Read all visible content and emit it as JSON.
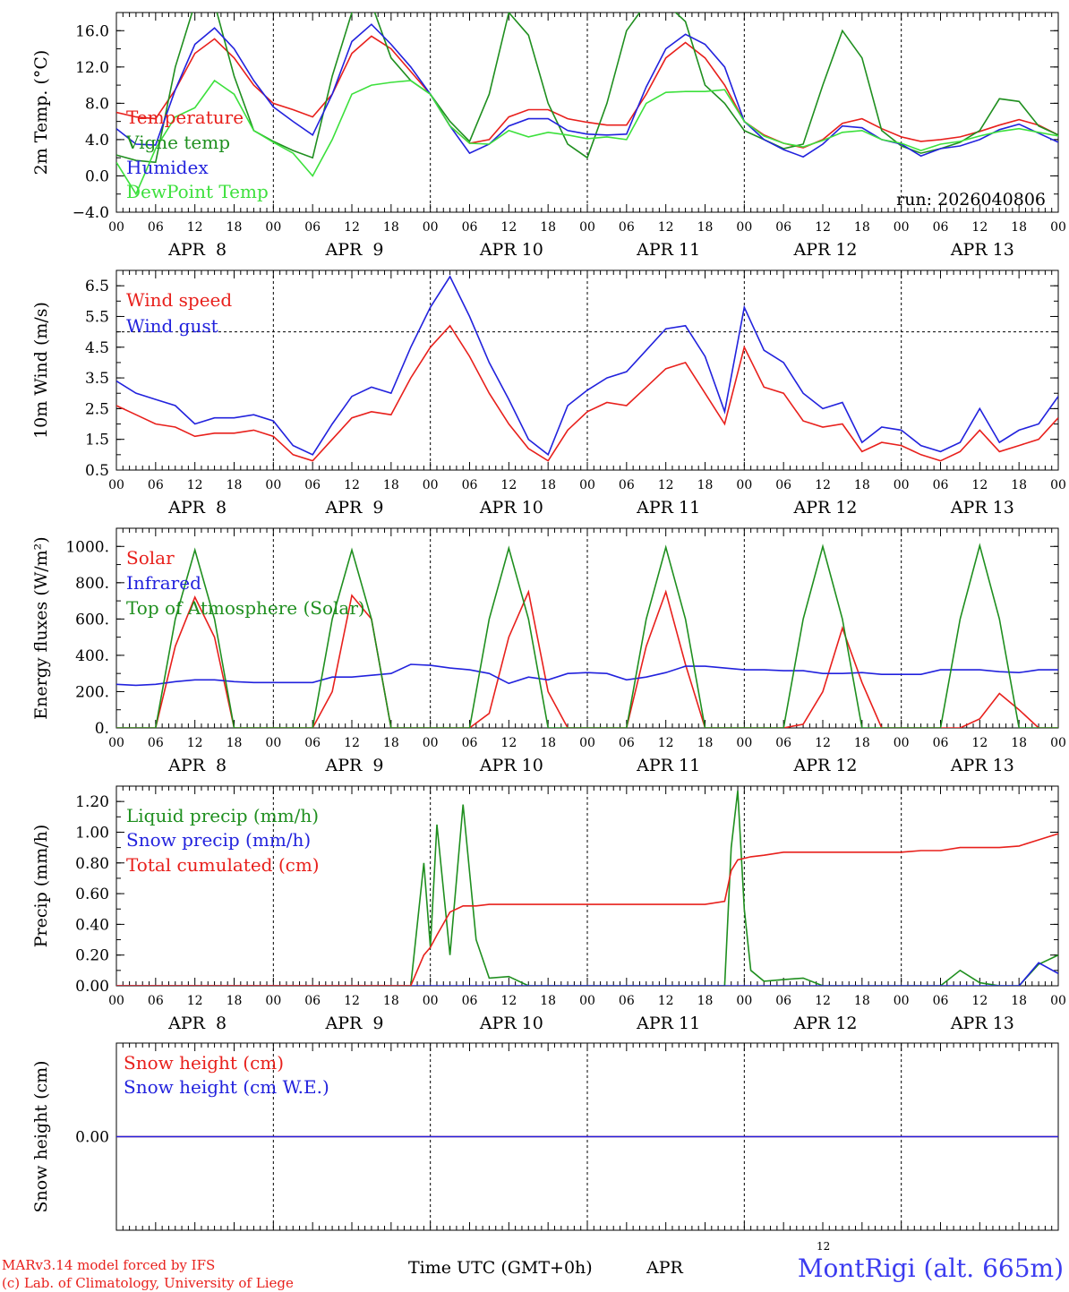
{
  "chart_data": [
    {
      "type": "line",
      "ylabel": "2m Temp. (°C)",
      "ylim": [
        -4,
        18
      ],
      "yticks": [
        -4.0,
        0.0,
        4.0,
        8.0,
        12.0,
        16.0
      ],
      "ytick_labels": [
        "−4.0",
        "0.0",
        "4.0",
        "8.0",
        "12.0",
        "16.0"
      ],
      "x_hours": [
        0,
        3,
        6,
        9,
        12,
        15,
        18,
        21,
        24,
        27,
        30,
        33,
        36,
        39,
        42,
        45,
        48,
        51,
        54,
        57,
        60,
        63,
        66,
        69,
        72,
        75,
        78,
        81,
        84,
        87,
        90,
        93,
        96,
        99,
        102,
        105,
        108,
        111,
        114,
        117,
        120,
        123,
        126,
        129,
        132,
        135,
        138,
        141,
        144
      ],
      "annotation": "run: 2026040806",
      "series": [
        {
          "name": "Temperature",
          "color": "#e8201c",
          "values": [
            7,
            6.5,
            6.3,
            9.5,
            13.5,
            15.1,
            13,
            10,
            8,
            7.3,
            6.5,
            9,
            13.5,
            15.4,
            14,
            11.5,
            9,
            5.5,
            3.6,
            4,
            6.5,
            7.3,
            7.3,
            6.3,
            5.9,
            5.6,
            5.6,
            9,
            13,
            14.7,
            13,
            10,
            6,
            4.5,
            3.6,
            3.1,
            4,
            5.8,
            6.3,
            5.2,
            4.3,
            3.8,
            4,
            4.3,
            4.9,
            5.6,
            6.2,
            5.6,
            4.5
          ]
        },
        {
          "name": "Vigne temp",
          "color": "#1f8f1f",
          "values": [
            2.3,
            1.7,
            1.5,
            12,
            19,
            19,
            11,
            5,
            3.8,
            2.8,
            2,
            11,
            18,
            19,
            13,
            10.5,
            9,
            6,
            3.8,
            9,
            18,
            15.5,
            8,
            3.5,
            2,
            8,
            16,
            19,
            19,
            17,
            10,
            8,
            5,
            4,
            3,
            3.5,
            10,
            16,
            13,
            5,
            3.3,
            2.5,
            3,
            3.7,
            5,
            8.5,
            8.2,
            5.5,
            4.5
          ]
        },
        {
          "name": "Humidex",
          "color": "#2222dd",
          "values": [
            5.2,
            3.5,
            3.4,
            9.5,
            14.5,
            16.3,
            14,
            10.5,
            7.6,
            6,
            4.5,
            9,
            14.8,
            16.7,
            14.5,
            12,
            9,
            5.5,
            2.5,
            3.5,
            5.5,
            6.3,
            6.3,
            5,
            4.6,
            4.5,
            4.6,
            9.8,
            14,
            15.6,
            14.5,
            12,
            6,
            4,
            2.9,
            2.1,
            3.5,
            5.5,
            5.3,
            4,
            3.5,
            2.2,
            3,
            3.3,
            4,
            5.1,
            5.7,
            4.7,
            3.7
          ]
        },
        {
          "name": "DewPoint Temp",
          "color": "#3ce03c",
          "values": [
            1.5,
            -2,
            3,
            6.5,
            7.5,
            10.5,
            9,
            5,
            3.7,
            2.5,
            0,
            4,
            9,
            10,
            10.3,
            10.5,
            9,
            5.5,
            3.6,
            3.5,
            5,
            4.3,
            4.8,
            4.5,
            4.1,
            4.3,
            4,
            8,
            9.2,
            9.3,
            9.3,
            9.5,
            6,
            4.4,
            3.6,
            3.2,
            3.9,
            4.8,
            5,
            4,
            3.6,
            2.8,
            3.5,
            3.8,
            4.4,
            4.9,
            5.2,
            4.8,
            4.4
          ]
        }
      ]
    },
    {
      "type": "line",
      "ylabel": "10m Wind (m/s)",
      "ylim": [
        0.5,
        7
      ],
      "yticks": [
        0.5,
        1.5,
        2.5,
        3.5,
        4.5,
        5.5,
        6.5
      ],
      "ytick_labels": [
        "0.5",
        "1.5",
        "2.5",
        "3.5",
        "4.5",
        "5.5",
        "6.5"
      ],
      "reference_line": 5,
      "x_hours": [
        0,
        3,
        6,
        9,
        12,
        15,
        18,
        21,
        24,
        27,
        30,
        33,
        36,
        39,
        42,
        45,
        48,
        51,
        54,
        57,
        60,
        63,
        66,
        69,
        72,
        75,
        78,
        81,
        84,
        87,
        90,
        93,
        96,
        99,
        102,
        105,
        108,
        111,
        114,
        117,
        120,
        123,
        126,
        129,
        132,
        135,
        138,
        141,
        144
      ],
      "series": [
        {
          "name": "Wind speed",
          "color": "#e8201c",
          "values": [
            2.6,
            2.3,
            2.0,
            1.9,
            1.6,
            1.7,
            1.7,
            1.8,
            1.6,
            1.0,
            0.8,
            1.5,
            2.2,
            2.4,
            2.3,
            3.5,
            4.5,
            5.2,
            4.2,
            3.0,
            2.0,
            1.2,
            0.8,
            1.8,
            2.4,
            2.7,
            2.6,
            3.2,
            3.8,
            4.0,
            3.0,
            2.0,
            4.5,
            3.2,
            3.0,
            2.1,
            1.9,
            2.0,
            1.1,
            1.4,
            1.3,
            1.0,
            0.8,
            1.1,
            1.8,
            1.1,
            1.3,
            1.5,
            2.2
          ]
        },
        {
          "name": "Wind gust",
          "color": "#2222dd",
          "values": [
            3.4,
            3.0,
            2.8,
            2.6,
            2.0,
            2.2,
            2.2,
            2.3,
            2.1,
            1.3,
            1.0,
            2.0,
            2.9,
            3.2,
            3.0,
            4.5,
            5.8,
            6.8,
            5.5,
            4.0,
            2.8,
            1.5,
            1.0,
            2.6,
            3.1,
            3.5,
            3.7,
            4.4,
            5.1,
            5.2,
            4.2,
            2.4,
            5.8,
            4.4,
            4.0,
            3.0,
            2.5,
            2.7,
            1.4,
            1.9,
            1.8,
            1.3,
            1.1,
            1.4,
            2.5,
            1.4,
            1.8,
            2.0,
            2.9
          ]
        }
      ]
    },
    {
      "type": "line",
      "ylabel": "Energy fluxes (W/m²)",
      "ylim": [
        0,
        1100
      ],
      "yticks": [
        0,
        200,
        400,
        600,
        800,
        1000
      ],
      "ytick_labels": [
        "0.",
        "200.",
        "400.",
        "600.",
        "800.",
        "1000."
      ],
      "x_hours": [
        0,
        3,
        6,
        9,
        12,
        15,
        18,
        21,
        24,
        27,
        30,
        33,
        36,
        39,
        42,
        45,
        48,
        51,
        54,
        57,
        60,
        63,
        66,
        69,
        72,
        75,
        78,
        81,
        84,
        87,
        90,
        93,
        96,
        99,
        102,
        105,
        108,
        111,
        114,
        117,
        120,
        123,
        126,
        129,
        132,
        135,
        138,
        141,
        144
      ],
      "series": [
        {
          "name": "Solar",
          "color": "#e8201c",
          "values": [
            0,
            0,
            0,
            450,
            720,
            500,
            0,
            0,
            0,
            0,
            0,
            200,
            730,
            600,
            0,
            0,
            0,
            0,
            0,
            80,
            500,
            750,
            200,
            0,
            0,
            0,
            0,
            450,
            750,
            350,
            0,
            0,
            0,
            0,
            0,
            20,
            200,
            550,
            250,
            0,
            0,
            0,
            0,
            0,
            50,
            190,
            100,
            0,
            0
          ]
        },
        {
          "name": "Infrared",
          "color": "#2222dd",
          "values": [
            240,
            235,
            240,
            255,
            265,
            265,
            255,
            250,
            250,
            250,
            250,
            280,
            280,
            290,
            300,
            350,
            345,
            330,
            320,
            300,
            245,
            280,
            265,
            300,
            305,
            300,
            265,
            280,
            305,
            340,
            340,
            330,
            320,
            320,
            315,
            315,
            300,
            300,
            305,
            295,
            295,
            295,
            320,
            320,
            320,
            310,
            305,
            320,
            320
          ]
        },
        {
          "name": "Top of Atmosphere (Solar)",
          "color": "#1f8f1f",
          "values": [
            0,
            0,
            0,
            600,
            980,
            600,
            0,
            0,
            0,
            0,
            0,
            600,
            980,
            600,
            0,
            0,
            0,
            0,
            0,
            600,
            990,
            600,
            0,
            0,
            0,
            0,
            0,
            600,
            995,
            600,
            0,
            0,
            0,
            0,
            0,
            600,
            1000,
            600,
            0,
            0,
            0,
            0,
            0,
            600,
            1005,
            600,
            0,
            0,
            0
          ]
        }
      ]
    },
    {
      "type": "line",
      "ylabel": "Precip (mm/h)",
      "ylim": [
        0,
        1.3
      ],
      "yticks": [
        0.0,
        0.2,
        0.4,
        0.6,
        0.8,
        1.0,
        1.2
      ],
      "ytick_labels": [
        "0.00",
        "0.20",
        "0.40",
        "0.60",
        "0.80",
        "1.00",
        "1.20"
      ],
      "x_hours": [
        0,
        3,
        6,
        9,
        12,
        15,
        18,
        21,
        24,
        27,
        30,
        33,
        36,
        39,
        42,
        45,
        47,
        48,
        49,
        51,
        53,
        55,
        57,
        60,
        63,
        66,
        69,
        72,
        75,
        78,
        81,
        84,
        87,
        90,
        93,
        94,
        95,
        96,
        97,
        99,
        102,
        105,
        108,
        111,
        114,
        117,
        120,
        123,
        126,
        129,
        132,
        135,
        138,
        141,
        144
      ],
      "series": [
        {
          "name": "Liquid precip (mm/h)",
          "color": "#1f8f1f",
          "values": [
            0,
            0,
            0,
            0,
            0,
            0,
            0,
            0,
            0,
            0,
            0,
            0,
            0,
            0,
            0,
            0,
            0.8,
            0.25,
            1.05,
            0.2,
            1.18,
            0.3,
            0.05,
            0.06,
            0,
            0,
            0,
            0,
            0,
            0,
            0,
            0,
            0,
            0,
            0,
            0.9,
            1.27,
            0.5,
            0.1,
            0.03,
            0.04,
            0.05,
            0,
            0,
            0,
            0,
            0,
            0,
            0,
            0.1,
            0.02,
            0,
            0,
            0.14,
            0.2
          ]
        },
        {
          "name": "Snow precip (mm/h)",
          "color": "#2222dd",
          "values": [
            0,
            0,
            0,
            0,
            0,
            0,
            0,
            0,
            0,
            0,
            0,
            0,
            0,
            0,
            0,
            0,
            0,
            0,
            0,
            0,
            0,
            0,
            0,
            0,
            0,
            0,
            0,
            0,
            0,
            0,
            0,
            0,
            0,
            0,
            0,
            0,
            0,
            0,
            0,
            0,
            0,
            0,
            0,
            0,
            0,
            0,
            0,
            0,
            0,
            0,
            0,
            0,
            0,
            0.15,
            0.08
          ]
        },
        {
          "name": "Total cumulated (cm)",
          "color": "#e8201c",
          "values": [
            0,
            0,
            0,
            0,
            0,
            0,
            0,
            0,
            0,
            0,
            0,
            0,
            0,
            0,
            0,
            0,
            0.2,
            0.25,
            0.33,
            0.48,
            0.52,
            0.52,
            0.53,
            0.53,
            0.53,
            0.53,
            0.53,
            0.53,
            0.53,
            0.53,
            0.53,
            0.53,
            0.53,
            0.53,
            0.55,
            0.75,
            0.82,
            0.83,
            0.84,
            0.85,
            0.87,
            0.87,
            0.87,
            0.87,
            0.87,
            0.87,
            0.87,
            0.88,
            0.88,
            0.9,
            0.9,
            0.9,
            0.91,
            0.95,
            0.99
          ]
        }
      ]
    },
    {
      "type": "line",
      "ylabel": "Snow height (cm)",
      "ylim": [
        -1,
        1
      ],
      "yticks": [
        0.0
      ],
      "ytick_labels": [
        "0.00"
      ],
      "x_hours": [
        0,
        144
      ],
      "series": [
        {
          "name": "Snow height (cm)",
          "color": "#e8201c",
          "values": [
            0,
            0
          ]
        },
        {
          "name": "Snow height (cm W.E.)",
          "color": "#2222dd",
          "values": [
            0,
            0
          ]
        }
      ]
    }
  ],
  "x_axis": {
    "hour_labels": [
      "00",
      "06",
      "12",
      "18",
      "00",
      "06",
      "12",
      "18",
      "00",
      "06",
      "12",
      "18",
      "00",
      "06",
      "12",
      "18",
      "00",
      "06",
      "12",
      "18",
      "00",
      "06",
      "12",
      "18",
      "00"
    ],
    "day_labels": [
      "APR  8",
      "APR  9",
      "APR 10",
      "APR 11",
      "APR 12",
      "APR 13"
    ]
  },
  "footer": {
    "model_line1": "MARv3.14 model forced by IFS",
    "model_line2": "(c) Lab. of Climatology, University of Liege",
    "time_label": "Time UTC (GMT+0h)",
    "month_label": "APR",
    "superscript": "12",
    "station": "MontRigi (alt. 665m)"
  }
}
